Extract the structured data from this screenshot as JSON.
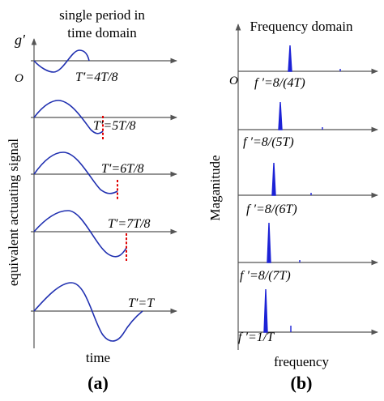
{
  "panel_a": {
    "header_line1": "single period in",
    "header_line2": "time domain",
    "y_axis_symbol": "g′",
    "origin": "O",
    "y_label": "equivalent actuating signal",
    "x_label": "time",
    "panel_label": "(a)",
    "traces": [
      {
        "label": "T′=4T/8"
      },
      {
        "label": "T′=5T/8"
      },
      {
        "label": "T′=6T/8"
      },
      {
        "label": "T′=7T/8"
      },
      {
        "label": "T′=T"
      }
    ]
  },
  "panel_b": {
    "header": "Frequency domain",
    "origin": "O",
    "y_label": "Maganitude",
    "x_label": "frequency",
    "panel_label": "(b)",
    "spectra": [
      {
        "label": "f ′=8/(4T)"
      },
      {
        "label": "f ′=8/(5T)"
      },
      {
        "label": "f ′=8/(6T)"
      },
      {
        "label": "f ′=8/(7T)"
      },
      {
        "label": "f ′=1/T"
      }
    ]
  },
  "colors": {
    "waveform": "#1f2fb0",
    "cutoff_marker": "#e00000",
    "spectrum": "#1c22d6"
  }
}
